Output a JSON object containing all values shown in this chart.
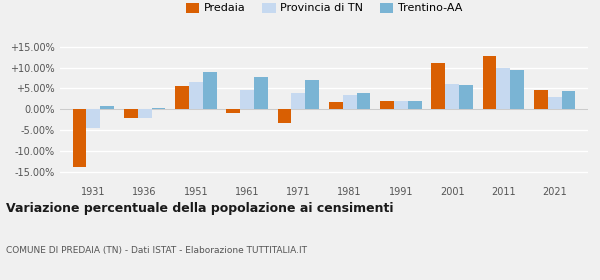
{
  "years": [
    1931,
    1936,
    1951,
    1961,
    1971,
    1981,
    1991,
    2001,
    2011,
    2021
  ],
  "predaia": [
    -0.14,
    -0.02,
    0.056,
    -0.01,
    -0.033,
    0.018,
    0.02,
    0.112,
    0.127,
    0.046
  ],
  "provincia_tn": [
    -0.046,
    -0.022,
    0.065,
    0.045,
    0.038,
    0.035,
    0.02,
    0.06,
    0.1,
    0.03
  ],
  "trentino_aa": [
    0.007,
    0.003,
    0.09,
    0.078,
    0.07,
    0.038,
    0.02,
    0.057,
    0.095,
    0.043
  ],
  "color_predaia": "#d95f02",
  "color_provincia": "#c6d9f0",
  "color_trentino": "#7ab4d4",
  "title": "Variazione percentuale della popolazione ai censimenti",
  "subtitle": "COMUNE DI PREDAIA (TN) - Dati ISTAT - Elaborazione TUTTITALIA.IT",
  "ylim": [
    -0.175,
    0.175
  ],
  "yticks": [
    -0.15,
    -0.1,
    -0.05,
    0.0,
    0.05,
    0.1,
    0.15
  ],
  "bg_color": "#f0f0f0",
  "bar_width": 0.27
}
